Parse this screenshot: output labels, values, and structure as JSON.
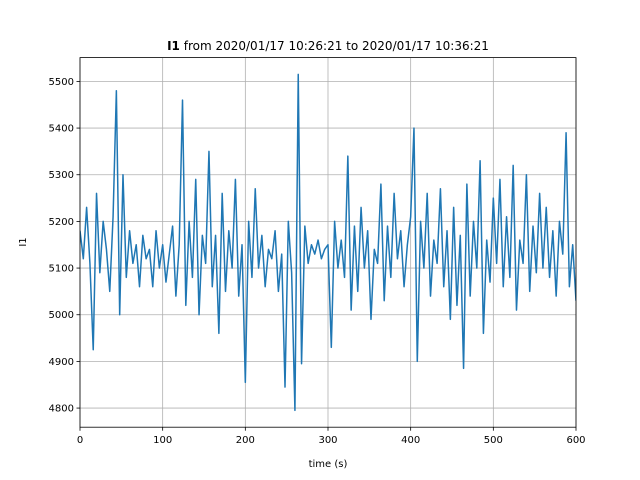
{
  "chart_data": {
    "type": "line",
    "title": {
      "bold": "I1",
      "text": "from 2020/01/17 10:26:21 to 2020/01/17 10:36:21"
    },
    "xlabel": "time (s)",
    "ylabel": "I1",
    "x": [
      0,
      4,
      8,
      12,
      16,
      20,
      24,
      28,
      32,
      36,
      40,
      44,
      48,
      52,
      56,
      60,
      64,
      68,
      72,
      76,
      80,
      84,
      88,
      92,
      96,
      100,
      104,
      108,
      112,
      116,
      120,
      124,
      128,
      132,
      136,
      140,
      144,
      148,
      152,
      156,
      160,
      164,
      168,
      172,
      176,
      180,
      184,
      188,
      192,
      196,
      200,
      204,
      208,
      212,
      216,
      220,
      224,
      228,
      232,
      236,
      240,
      244,
      248,
      252,
      256,
      260,
      264,
      268,
      272,
      276,
      280,
      284,
      288,
      292,
      296,
      300,
      304,
      308,
      312,
      316,
      320,
      324,
      328,
      332,
      336,
      340,
      344,
      348,
      352,
      356,
      360,
      364,
      368,
      372,
      376,
      380,
      384,
      388,
      392,
      396,
      400,
      404,
      408,
      412,
      416,
      420,
      424,
      428,
      432,
      436,
      440,
      444,
      448,
      452,
      456,
      460,
      464,
      468,
      472,
      476,
      480,
      484,
      488,
      492,
      496,
      500,
      504,
      508,
      512,
      516,
      520,
      524,
      528,
      532,
      536,
      540,
      544,
      548,
      552,
      556,
      560,
      564,
      568,
      572,
      576,
      580,
      584,
      588,
      592,
      596,
      600
    ],
    "series": [
      {
        "name": "I1",
        "color": "#1f77b4",
        "values": [
          5180,
          5120,
          5230,
          5110,
          4925,
          5260,
          5090,
          5200,
          5140,
          5050,
          5210,
          5480,
          5000,
          5300,
          5080,
          5180,
          5110,
          5150,
          5060,
          5170,
          5120,
          5140,
          5060,
          5180,
          5100,
          5150,
          5070,
          5130,
          5190,
          5040,
          5150,
          5460,
          5020,
          5200,
          5080,
          5290,
          5000,
          5170,
          5110,
          5350,
          5060,
          5170,
          4960,
          5260,
          5050,
          5180,
          5100,
          5290,
          5040,
          5150,
          4855,
          5200,
          5080,
          5270,
          5100,
          5170,
          5060,
          5140,
          5120,
          5180,
          5050,
          5130,
          4845,
          5200,
          5090,
          4795,
          5515,
          4895,
          5190,
          5110,
          5150,
          5130,
          5160,
          5120,
          5140,
          5150,
          4930,
          5200,
          5100,
          5160,
          5080,
          5340,
          5010,
          5190,
          5050,
          5230,
          5100,
          5180,
          4990,
          5140,
          5110,
          5280,
          5030,
          5190,
          5080,
          5260,
          5120,
          5180,
          5060,
          5150,
          5210,
          5400,
          4900,
          5200,
          5100,
          5260,
          5040,
          5160,
          5110,
          5270,
          5060,
          5180,
          4990,
          5230,
          5020,
          5170,
          4885,
          5280,
          5040,
          5200,
          5100,
          5330,
          4960,
          5160,
          5070,
          5250,
          5110,
          5290,
          5060,
          5210,
          5080,
          5320,
          5010,
          5160,
          5110,
          5300,
          5050,
          5190,
          5090,
          5260,
          5100,
          5230,
          5080,
          5180,
          5040,
          5200,
          5130,
          5390,
          5060,
          5150,
          5030
        ]
      }
    ],
    "xlim": [
      0,
      600
    ],
    "xticks": [
      0,
      100,
      200,
      300,
      400,
      500,
      600
    ],
    "ylim": [
      4759,
      5551
    ],
    "yticks": [
      4800,
      4900,
      5000,
      5100,
      5200,
      5300,
      5400,
      5500
    ],
    "grid": true
  }
}
